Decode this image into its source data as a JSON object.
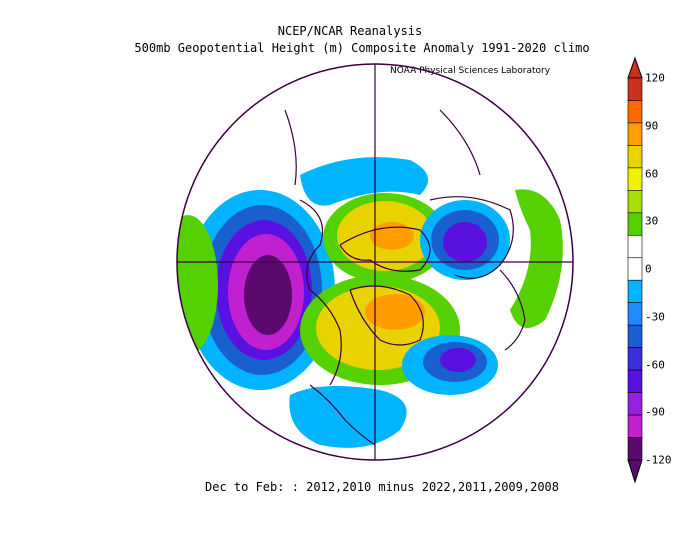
{
  "titles": {
    "line1": "NCEP/NCAR Reanalysis",
    "line2": "500mb Geopotential Height (m) Composite Anomaly 1991-2020 climo",
    "credit": "NOAA Physical Sciences Laboratory",
    "footer": "Dec to Feb: : 2012,2010 minus 2022,2011,2009,2008"
  },
  "colorbar": {
    "labels": [
      "120",
      "90",
      "60",
      "30",
      "0",
      "-30",
      "-60",
      "-90",
      "-120"
    ],
    "colors": [
      "#c8321e",
      "#ff6a00",
      "#ff9d00",
      "#e8d200",
      "#f2f200",
      "#a8e000",
      "#55d000",
      "#ffffff",
      "#ffffff",
      "#00b4ff",
      "#1e8cff",
      "#1a5fd0",
      "#3a2fd8",
      "#5a10e0",
      "#9a20e0",
      "#c020d0",
      "#5a0a6e"
    ]
  },
  "map": {
    "projection": "north polar stereographic",
    "anomaly_color_scale": {
      "low": "#4a0a5e",
      "neutral": "#ffffff",
      "high": "#e06000"
    }
  }
}
